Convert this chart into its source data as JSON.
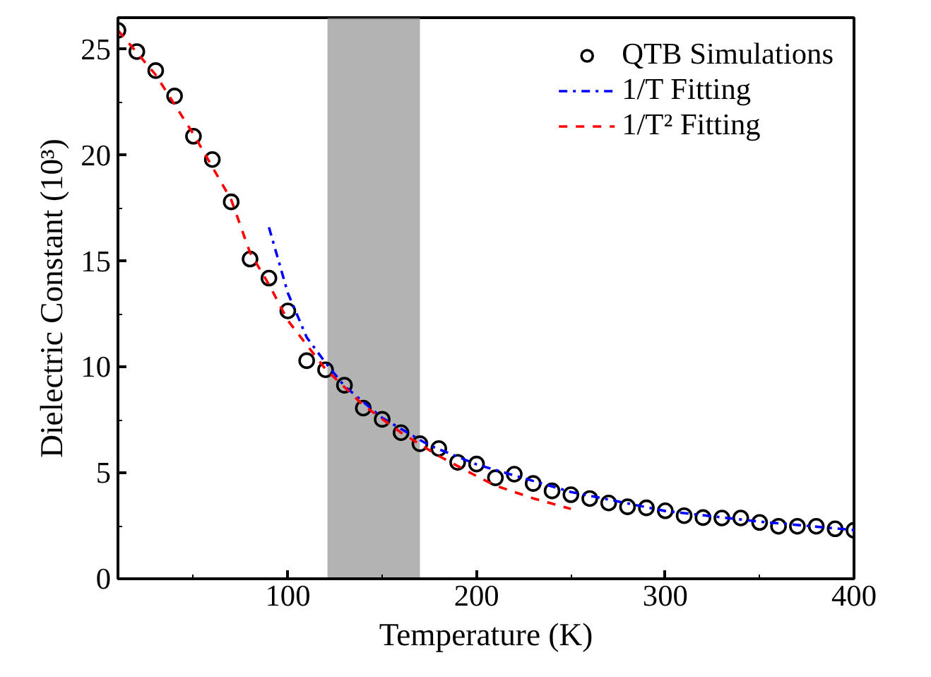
{
  "chart_data": {
    "type": "scatter",
    "xlabel": "Temperature (K)",
    "ylabel": "Dielectric Constant (10³)",
    "xlim": [
      10,
      400
    ],
    "ylim": [
      0,
      26.5
    ],
    "xticks": [
      100,
      200,
      300,
      400
    ],
    "yticks": [
      0,
      5,
      10,
      15,
      20,
      25
    ],
    "grid": false,
    "legend": "top right",
    "bands": [
      {
        "axis": "x",
        "from": 121,
        "to": 170,
        "color": "#808080"
      }
    ],
    "series": [
      {
        "name": "QTB Simulations",
        "marker": "circle",
        "color": "#000000",
        "x": [
          10,
          20,
          30,
          40,
          50,
          60,
          70,
          80,
          90,
          100,
          110,
          120,
          130,
          140,
          150,
          160,
          170,
          180,
          190,
          200,
          210,
          220,
          230,
          240,
          250,
          260,
          270,
          280,
          290,
          300,
          310,
          320,
          330,
          340,
          350,
          360,
          370,
          380,
          390,
          400
        ],
        "values": [
          25.9,
          24.9,
          24.0,
          22.8,
          20.9,
          19.8,
          17.8,
          15.1,
          14.2,
          12.65,
          10.3,
          9.87,
          9.14,
          8.06,
          7.53,
          6.9,
          6.38,
          6.15,
          5.5,
          5.42,
          4.77,
          4.94,
          4.5,
          4.15,
          3.97,
          3.79,
          3.58,
          3.4,
          3.35,
          3.21,
          2.98,
          2.89,
          2.87,
          2.87,
          2.66,
          2.48,
          2.48,
          2.48,
          2.36,
          2.29
        ]
      },
      {
        "name": "1/T Fitting",
        "type": "line",
        "line_style": "dashdot",
        "color": "#0000ff",
        "x": [
          90,
          100,
          110,
          120,
          130,
          150,
          175,
          200,
          250,
          300,
          350,
          400
        ],
        "values": [
          16.6,
          13.5,
          11.4,
          10.2,
          9.1,
          7.6,
          6.3,
          5.4,
          4.1,
          3.2,
          2.7,
          2.3
        ]
      },
      {
        "name": "1/T² Fitting",
        "type": "line",
        "line_style": "dashed",
        "color": "#ff0000",
        "x": [
          10,
          30,
          50,
          70,
          80,
          90,
          100,
          120,
          140,
          160,
          180,
          200,
          210,
          230,
          250
        ],
        "values": [
          25.9,
          23.8,
          21.0,
          17.9,
          15.4,
          13.9,
          12.2,
          9.9,
          8.2,
          6.9,
          5.8,
          4.85,
          4.4,
          3.8,
          3.3
        ]
      }
    ]
  }
}
